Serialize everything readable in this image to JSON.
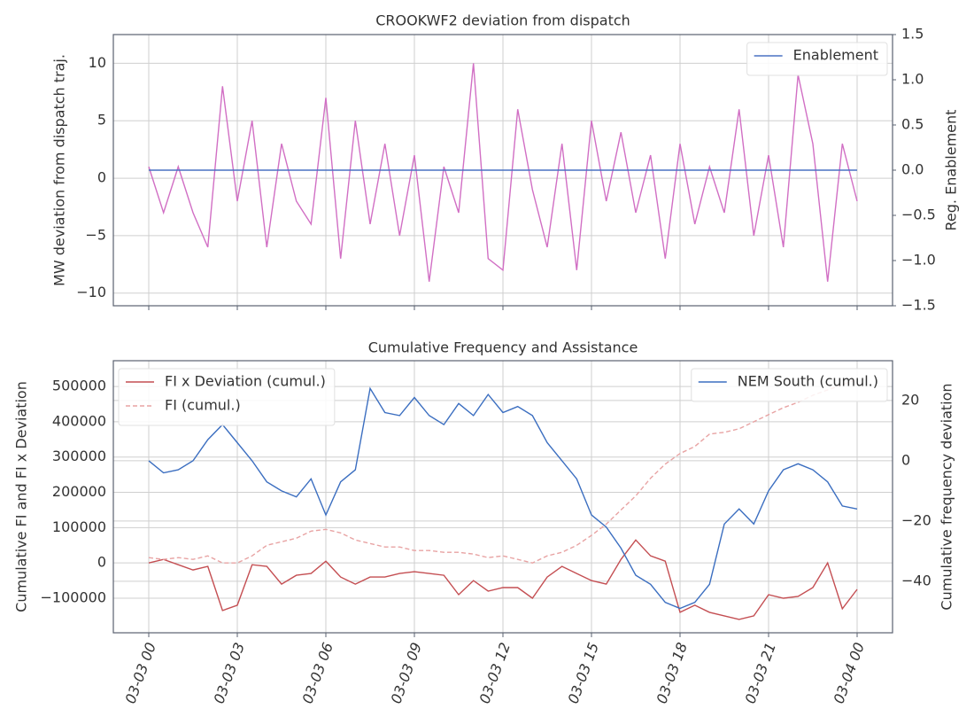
{
  "chart_data": [
    {
      "type": "line",
      "title": "CROOKWF2 deviation from dispatch",
      "ylabel": "MW deviation from dispatch traj.",
      "y2label": "Reg. Enablement",
      "x": [
        0,
        0.5,
        1,
        1.5,
        2,
        2.5,
        3,
        3.5,
        4,
        4.5,
        5,
        5.5,
        6,
        6.5,
        7,
        7.5,
        8,
        8.5,
        9,
        9.5,
        10,
        10.5,
        11,
        11.5,
        12,
        12.5,
        13,
        13.5,
        14,
        14.5,
        15,
        15.5,
        16,
        16.5,
        17,
        17.5,
        18,
        18.5,
        19,
        19.5,
        20,
        20.5,
        21,
        21.5,
        22,
        22.5,
        23,
        23.5,
        24
      ],
      "series": [
        {
          "color": "#d16fc4",
          "values": [
            1,
            -3,
            1,
            -3,
            -6,
            8,
            -2,
            5,
            -6,
            3,
            -2,
            -4,
            7,
            -7,
            5,
            -4,
            3,
            -5,
            2,
            -9,
            1,
            -3,
            10,
            -7,
            -8,
            6,
            -1,
            -6,
            3,
            -8,
            5,
            -2,
            4,
            -3,
            2,
            -7,
            3,
            -4,
            1,
            -3,
            6,
            -5,
            2,
            -6,
            9,
            3,
            -9,
            3,
            -2
          ]
        },
        {
          "name": "Enablement",
          "color": "#4a72c4",
          "axis": "y2",
          "values": [
            0,
            0,
            0,
            0,
            0,
            0,
            0,
            0,
            0,
            0,
            0,
            0,
            0,
            0,
            0,
            0,
            0,
            0,
            0,
            0,
            0,
            0,
            0,
            0,
            0,
            0,
            0,
            0,
            0,
            0,
            0,
            0,
            0,
            0,
            0,
            0,
            0,
            0,
            0,
            0,
            0,
            0,
            0,
            0,
            0,
            0,
            0,
            0,
            0
          ]
        }
      ],
      "xlim": [
        -1.2,
        25.2
      ],
      "xticks": [
        0,
        3,
        6,
        9,
        12,
        15,
        18,
        21,
        24
      ],
      "ylim": [
        -11.1,
        12.5
      ],
      "yticks": [
        {
          "value": -10,
          "label": "−10"
        },
        {
          "value": -5,
          "label": "−5"
        },
        0,
        5,
        10
      ],
      "y2lim": [
        -1.5,
        1.5
      ],
      "y2ticks": [
        {
          "value": -1.5,
          "label": "−1.5"
        },
        {
          "value": -1.0,
          "label": "−1.0"
        },
        {
          "value": -0.5,
          "label": "−0.5"
        },
        {
          "value": 0,
          "label": "0.0"
        },
        0.5,
        {
          "value": 1,
          "label": "1.0"
        },
        1.5
      ],
      "grid": true,
      "y2legend": "upper right"
    },
    {
      "type": "line",
      "title": "Cumulative Frequency and Assistance",
      "ylabel": "Cumulative FI and FI x Deviation",
      "y2label": "Cumulative frequency deviation",
      "x": [
        0,
        0.5,
        1,
        1.5,
        2,
        2.5,
        3,
        3.5,
        4,
        4.5,
        5,
        5.5,
        6,
        6.5,
        7,
        7.5,
        8,
        8.5,
        9,
        9.5,
        10,
        10.5,
        11,
        11.5,
        12,
        12.5,
        13,
        13.5,
        14,
        14.5,
        15,
        15.5,
        16,
        16.5,
        17,
        17.5,
        18,
        18.5,
        19,
        19.5,
        20,
        20.5,
        21,
        21.5,
        22,
        22.5,
        23,
        23.5,
        24
      ],
      "series": [
        {
          "name": "FI x Deviation (cumul.)",
          "color": "#c44e52",
          "values": [
            0,
            10000,
            -5000,
            -20000,
            -10000,
            -135000,
            -120000,
            -5000,
            -10000,
            -60000,
            -35000,
            -30000,
            5000,
            -40000,
            -60000,
            -40000,
            -40000,
            -30000,
            -25000,
            -30000,
            -35000,
            -90000,
            -50000,
            -80000,
            -70000,
            -70000,
            -100000,
            -40000,
            -10000,
            -30000,
            -50000,
            -60000,
            10000,
            65000,
            20000,
            5000,
            -140000,
            -120000,
            -140000,
            -150000,
            -160000,
            -150000,
            -90000,
            -100000,
            -95000,
            -70000,
            0,
            -130000,
            -75000
          ]
        },
        {
          "name": "FI (cumul.)",
          "color": "#e8a3a3",
          "dash": true,
          "values": [
            15000,
            10000,
            15000,
            10000,
            20000,
            0,
            0,
            20000,
            50000,
            60000,
            70000,
            90000,
            95000,
            85000,
            65000,
            55000,
            45000,
            45000,
            35000,
            35000,
            30000,
            30000,
            25000,
            15000,
            20000,
            10000,
            0,
            20000,
            30000,
            50000,
            78000,
            110000,
            150000,
            190000,
            240000,
            280000,
            310000,
            330000,
            365000,
            370000,
            380000,
            400000,
            420000,
            440000,
            455000,
            475000,
            490000,
            505000,
            520000
          ]
        },
        {
          "name": "NEM South (cumul.)",
          "color": "#3b6ec0",
          "axis": "y2",
          "values": [
            0,
            -4,
            -3,
            0,
            7,
            12,
            6,
            0,
            -7,
            -10,
            -12,
            -6,
            -18,
            -7,
            -3,
            24,
            16,
            15,
            21,
            15,
            12,
            19,
            15,
            22,
            16,
            18,
            15,
            6,
            0,
            -6,
            -18,
            -22,
            -29,
            -38,
            -41,
            -47,
            -49,
            -47,
            -41,
            -21,
            -16,
            -21,
            -10,
            -3,
            -1,
            -3,
            -7,
            -15,
            -16
          ]
        }
      ],
      "xlim": [
        -1.2,
        25.2
      ],
      "xticks": [
        {
          "value": 0,
          "label": "03-03 00"
        },
        {
          "value": 3,
          "label": "03-03 03"
        },
        {
          "value": 6,
          "label": "03-03 06"
        },
        {
          "value": 9,
          "label": "03-03 09"
        },
        {
          "value": 12,
          "label": "03-03 12"
        },
        {
          "value": 15,
          "label": "03-03 15"
        },
        {
          "value": 18,
          "label": "03-03 18"
        },
        {
          "value": 21,
          "label": "03-03 21"
        },
        {
          "value": 24,
          "label": "03-04 00"
        }
      ],
      "ylim": [
        -198000,
        573000
      ],
      "yticks": [
        {
          "value": -100000,
          "label": "−100000"
        },
        0,
        100000,
        200000,
        300000,
        400000,
        500000
      ],
      "y2lim": [
        -57.1,
        33.2
      ],
      "y2ticks": [
        {
          "value": -40,
          "label": "−40"
        },
        {
          "value": -20,
          "label": "−20"
        },
        0,
        20
      ],
      "grid": true,
      "y2grid": true,
      "legend": "upper left",
      "y2legend": "upper right"
    }
  ]
}
